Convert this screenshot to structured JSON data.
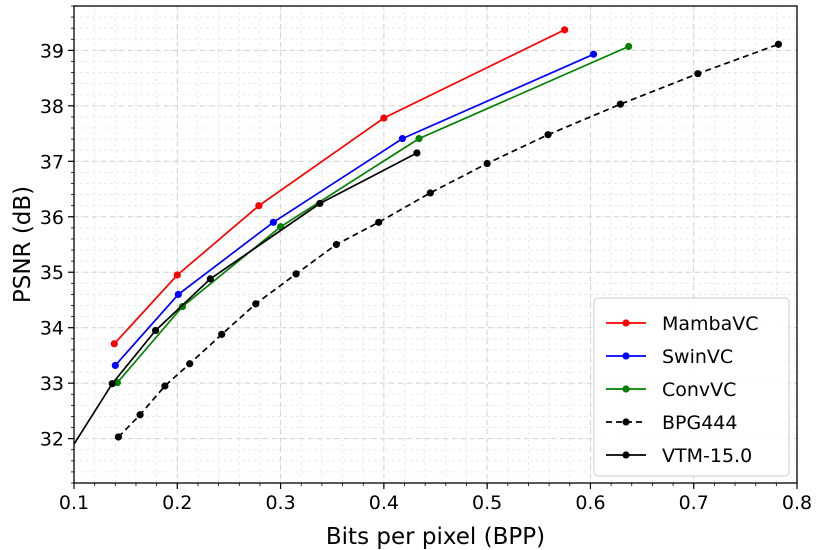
{
  "chart_data": {
    "type": "line",
    "title": "",
    "xlabel": "Bits per pixel (BPP)",
    "ylabel": "PSNR (dB)",
    "xlim": [
      0.1,
      0.8
    ],
    "ylim": [
      31.2,
      39.8
    ],
    "grid": true,
    "legend_position": "bottom-right",
    "x_ticks": [
      0.1,
      0.2,
      0.3,
      0.4,
      0.5,
      0.6,
      0.7,
      0.8
    ],
    "x_tick_labels": [
      "0.1",
      "0.2",
      "0.3",
      "0.4",
      "0.5",
      "0.6",
      "0.7",
      "0.8"
    ],
    "y_ticks": [
      32,
      33,
      34,
      35,
      36,
      37,
      38,
      39
    ],
    "y_tick_labels": [
      "32",
      "33",
      "34",
      "35",
      "36",
      "37",
      "38",
      "39"
    ],
    "series": [
      {
        "name": "MambaVC",
        "color": "#ff0000",
        "dash": "solid",
        "x": [
          0.139,
          0.2,
          0.279,
          0.4,
          0.575
        ],
        "y": [
          33.71,
          34.95,
          36.2,
          37.78,
          39.37
        ]
      },
      {
        "name": "SwinVC",
        "color": "#0000ff",
        "dash": "solid",
        "x": [
          0.14,
          0.201,
          0.293,
          0.418,
          0.603
        ],
        "y": [
          33.32,
          34.6,
          35.9,
          37.41,
          38.93
        ]
      },
      {
        "name": "ConvVC",
        "color": "#008000",
        "dash": "solid",
        "x": [
          0.142,
          0.205,
          0.3,
          0.434,
          0.637
        ],
        "y": [
          33.01,
          34.38,
          35.82,
          37.41,
          39.07
        ]
      },
      {
        "name": "BPG444",
        "color": "#000000",
        "dash": "dashed",
        "x": [
          0.143,
          0.164,
          0.188,
          0.212,
          0.243,
          0.276,
          0.315,
          0.354,
          0.395,
          0.445,
          0.5,
          0.559,
          0.629,
          0.704,
          0.782
        ],
        "y": [
          32.03,
          32.43,
          32.95,
          33.35,
          33.88,
          34.43,
          34.97,
          35.5,
          35.9,
          36.43,
          36.96,
          37.48,
          38.03,
          38.58,
          39.11
        ]
      },
      {
        "name": "VTM-15.0",
        "color": "#000000",
        "dash": "solid",
        "x": [
          0.1,
          0.137,
          0.179,
          0.232,
          0.338,
          0.432
        ],
        "y": [
          31.9,
          32.99,
          33.95,
          34.88,
          36.24,
          37.15
        ],
        "marker_from": 1
      }
    ]
  }
}
